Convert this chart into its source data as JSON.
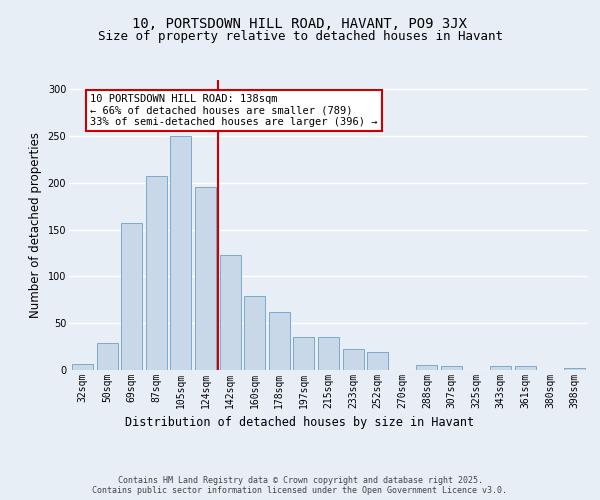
{
  "title_line1": "10, PORTSDOWN HILL ROAD, HAVANT, PO9 3JX",
  "title_line2": "Size of property relative to detached houses in Havant",
  "xlabel": "Distribution of detached houses by size in Havant",
  "ylabel": "Number of detached properties",
  "categories": [
    "32sqm",
    "50sqm",
    "69sqm",
    "87sqm",
    "105sqm",
    "124sqm",
    "142sqm",
    "160sqm",
    "178sqm",
    "197sqm",
    "215sqm",
    "233sqm",
    "252sqm",
    "270sqm",
    "288sqm",
    "307sqm",
    "325sqm",
    "343sqm",
    "361sqm",
    "380sqm",
    "398sqm"
  ],
  "values": [
    6,
    29,
    157,
    207,
    250,
    196,
    123,
    79,
    62,
    35,
    35,
    22,
    19,
    0,
    5,
    4,
    0,
    4,
    4,
    0,
    2
  ],
  "bar_color": "#c8d8e8",
  "bar_edge_color": "#7aaaca",
  "vline_x_index": 5.5,
  "vline_color": "#cc0000",
  "annotation_text": "10 PORTSDOWN HILL ROAD: 138sqm\n← 66% of detached houses are smaller (789)\n33% of semi-detached houses are larger (396) →",
  "annotation_box_color": "#ffffff",
  "annotation_box_edge_color": "#cc0000",
  "bg_color": "#e8eef5",
  "plot_bg_color": "#e8eef5",
  "grid_color": "#ffffff",
  "ylim": [
    0,
    310
  ],
  "yticks": [
    0,
    50,
    100,
    150,
    200,
    250,
    300
  ],
  "footer_text": "Contains HM Land Registry data © Crown copyright and database right 2025.\nContains public sector information licensed under the Open Government Licence v3.0.",
  "title_fontsize": 10,
  "subtitle_fontsize": 9,
  "axis_label_fontsize": 8.5,
  "tick_fontsize": 7,
  "annotation_fontsize": 7.5,
  "footer_fontsize": 6
}
